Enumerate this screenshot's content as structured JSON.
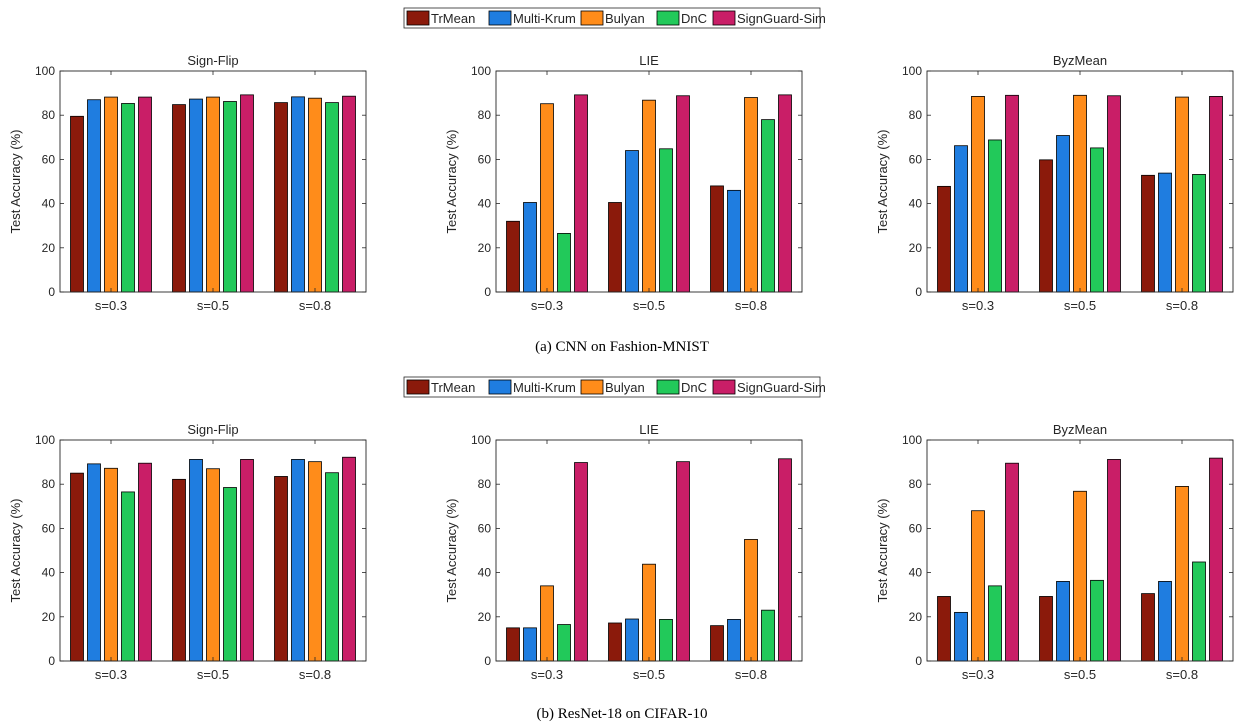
{
  "legend": [
    "TrMean",
    "Multi-Krum",
    "Bulyan",
    "DnC",
    "SignGuard-Sim"
  ],
  "series_colors": [
    "#8b1a0b",
    "#1f7de0",
    "#ff8c1a",
    "#22c95a",
    "#c91e67"
  ],
  "groups": [
    {
      "caption": "(a) CNN on Fashion-MNIST",
      "charts": [
        {
          "type": "bar",
          "title": "Sign-Flip",
          "ylabel": "Test Accuracy (%)",
          "xlabel": "",
          "ylim": [
            0,
            100
          ],
          "yticks": [
            "0",
            "20",
            "40",
            "60",
            "80",
            "100"
          ],
          "categories": [
            "s=0.3",
            "s=0.5",
            "s=0.8"
          ],
          "series": [
            {
              "name": "TrMean",
              "values": [
                79.5,
                84.8,
                85.7
              ]
            },
            {
              "name": "Multi-Krum",
              "values": [
                87.0,
                87.3,
                88.3
              ]
            },
            {
              "name": "Bulyan",
              "values": [
                88.2,
                88.2,
                87.7
              ]
            },
            {
              "name": "DnC",
              "values": [
                85.3,
                86.2,
                85.7
              ]
            },
            {
              "name": "SignGuard-Sim",
              "values": [
                88.2,
                89.2,
                88.6
              ]
            }
          ]
        },
        {
          "type": "bar",
          "title": "LIE",
          "ylabel": "Test Accuracy (%)",
          "xlabel": "",
          "ylim": [
            0,
            100
          ],
          "yticks": [
            "0",
            "20",
            "40",
            "60",
            "80",
            "100"
          ],
          "categories": [
            "s=0.3",
            "s=0.5",
            "s=0.8"
          ],
          "series": [
            {
              "name": "TrMean",
              "values": [
                32.0,
                40.5,
                48.0
              ]
            },
            {
              "name": "Multi-Krum",
              "values": [
                40.5,
                64.0,
                46.0
              ]
            },
            {
              "name": "Bulyan",
              "values": [
                85.2,
                86.8,
                88.0
              ]
            },
            {
              "name": "DnC",
              "values": [
                26.5,
                64.8,
                78.0
              ]
            },
            {
              "name": "SignGuard-Sim",
              "values": [
                89.2,
                88.8,
                89.2
              ]
            }
          ]
        },
        {
          "type": "bar",
          "title": "ByzMean",
          "ylabel": "Test Accuracy (%)",
          "xlabel": "",
          "ylim": [
            0,
            100
          ],
          "yticks": [
            "0",
            "20",
            "40",
            "60",
            "80",
            "100"
          ],
          "categories": [
            "s=0.3",
            "s=0.5",
            "s=0.8"
          ],
          "series": [
            {
              "name": "TrMean",
              "values": [
                47.8,
                59.8,
                52.8
              ]
            },
            {
              "name": "Multi-Krum",
              "values": [
                66.2,
                70.8,
                53.8
              ]
            },
            {
              "name": "Bulyan",
              "values": [
                88.5,
                89.0,
                88.2
              ]
            },
            {
              "name": "DnC",
              "values": [
                68.8,
                65.2,
                53.2
              ]
            },
            {
              "name": "SignGuard-Sim",
              "values": [
                89.0,
                88.8,
                88.5
              ]
            }
          ]
        }
      ]
    },
    {
      "caption": "(b) ResNet-18 on CIFAR-10",
      "charts": [
        {
          "type": "bar",
          "title": "Sign-Flip",
          "ylabel": "Test Accuracy (%)",
          "xlabel": "",
          "ylim": [
            0,
            100
          ],
          "yticks": [
            "0",
            "20",
            "40",
            "60",
            "80",
            "100"
          ],
          "categories": [
            "s=0.3",
            "s=0.5",
            "s=0.8"
          ],
          "series": [
            {
              "name": "TrMean",
              "values": [
                85.0,
                82.2,
                83.5
              ]
            },
            {
              "name": "Multi-Krum",
              "values": [
                89.2,
                91.2,
                91.2
              ]
            },
            {
              "name": "Bulyan",
              "values": [
                87.2,
                87.0,
                90.2
              ]
            },
            {
              "name": "DnC",
              "values": [
                76.5,
                78.5,
                85.2
              ]
            },
            {
              "name": "SignGuard-Sim",
              "values": [
                89.5,
                91.2,
                92.2
              ]
            }
          ]
        },
        {
          "type": "bar",
          "title": "LIE",
          "ylabel": "Test Accuracy (%)",
          "xlabel": "",
          "ylim": [
            0,
            100
          ],
          "yticks": [
            "0",
            "20",
            "40",
            "60",
            "80",
            "100"
          ],
          "categories": [
            "s=0.3",
            "s=0.5",
            "s=0.8"
          ],
          "series": [
            {
              "name": "TrMean",
              "values": [
                15.0,
                17.2,
                16.0
              ]
            },
            {
              "name": "Multi-Krum",
              "values": [
                15.0,
                19.0,
                18.8
              ]
            },
            {
              "name": "Bulyan",
              "values": [
                34.0,
                43.8,
                55.0
              ]
            },
            {
              "name": "DnC",
              "values": [
                16.5,
                18.8,
                23.0
              ]
            },
            {
              "name": "SignGuard-Sim",
              "values": [
                89.8,
                90.2,
                91.5
              ]
            }
          ]
        },
        {
          "type": "bar",
          "title": "ByzMean",
          "ylabel": "Test Accuracy (%)",
          "xlabel": "",
          "ylim": [
            0,
            100
          ],
          "yticks": [
            "0",
            "20",
            "40",
            "60",
            "80",
            "100"
          ],
          "categories": [
            "s=0.3",
            "s=0.5",
            "s=0.8"
          ],
          "series": [
            {
              "name": "TrMean",
              "values": [
                29.2,
                29.2,
                30.5
              ]
            },
            {
              "name": "Multi-Krum",
              "values": [
                22.0,
                36.0,
                36.0
              ]
            },
            {
              "name": "Bulyan",
              "values": [
                68.0,
                76.8,
                79.0
              ]
            },
            {
              "name": "DnC",
              "values": [
                34.0,
                36.5,
                44.8
              ]
            },
            {
              "name": "SignGuard-Sim",
              "values": [
                89.5,
                91.2,
                91.8
              ]
            }
          ]
        }
      ]
    }
  ]
}
